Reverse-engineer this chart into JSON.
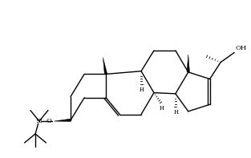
{
  "bg_color": "#ffffff",
  "line_color": "#000000",
  "lw": 1.0,
  "figsize": [
    3.13,
    1.97
  ],
  "dpi": 100,
  "xlim": [
    -1.5,
    10.5
  ],
  "ylim": [
    -0.5,
    7.5
  ]
}
